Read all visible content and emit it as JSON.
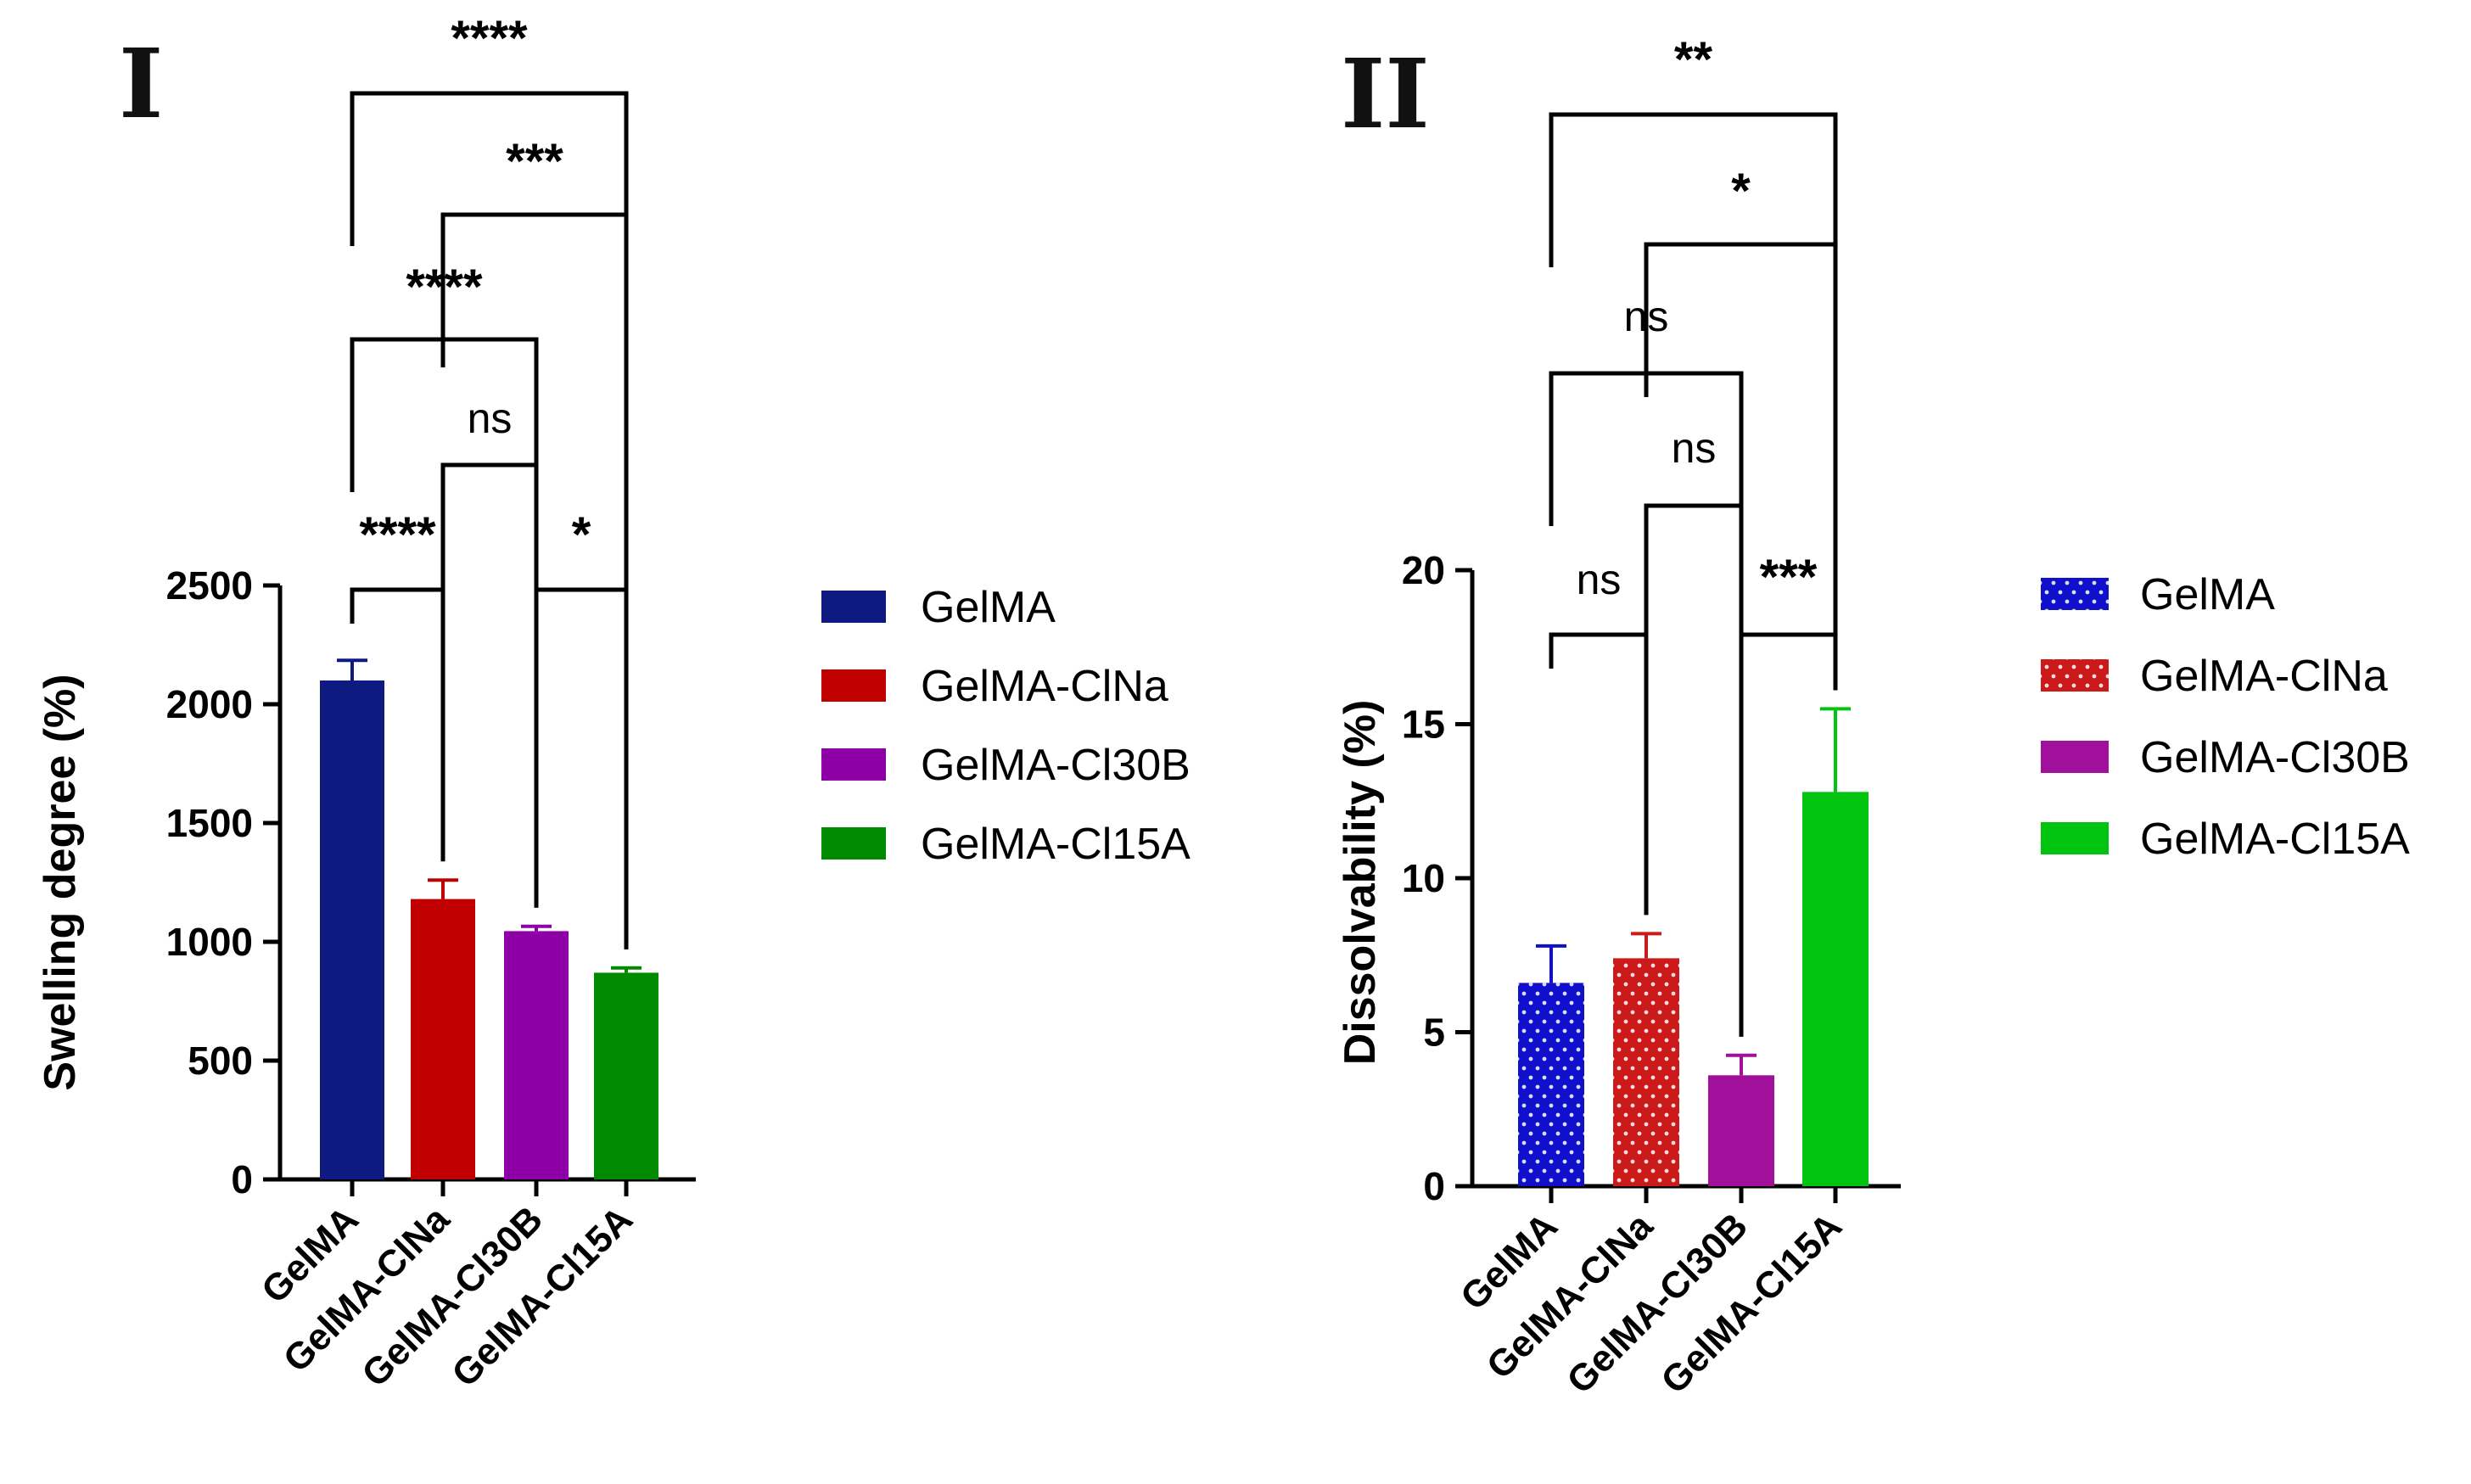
{
  "chart_data": [
    {
      "panel": "I",
      "type": "bar",
      "ylabel": "Swelling degree (%)",
      "ylim": [
        0,
        2500
      ],
      "yticks": [
        0,
        500,
        1000,
        1500,
        2000,
        2500
      ],
      "categories": [
        "GelMA",
        "GelMA-ClNa",
        "GelMA-Cl30B",
        "GelMA-Cl15A"
      ],
      "values": [
        2100,
        1180,
        1045,
        870
      ],
      "errors": [
        85,
        80,
        20,
        20
      ],
      "colors": [
        "#0f1a80",
        "#c00000",
        "#8c00a6",
        "#008a00"
      ],
      "legend": [
        {
          "label": "GelMA",
          "color": "#0f1a80"
        },
        {
          "label": "GelMA-ClNa",
          "color": "#c00000"
        },
        {
          "label": "GelMA-Cl30B",
          "color": "#8c00a6"
        },
        {
          "label": "GelMA-Cl15A",
          "color": "#008a00"
        }
      ],
      "comparisons": [
        {
          "from": 0,
          "to": 1,
          "label": "****"
        },
        {
          "from": 2,
          "to": 3,
          "label": "*"
        },
        {
          "from": 1,
          "to": 2,
          "label": "ns"
        },
        {
          "from": 0,
          "to": 2,
          "label": "****"
        },
        {
          "from": 1,
          "to": 3,
          "label": "***"
        },
        {
          "from": 0,
          "to": 3,
          "label": "****"
        }
      ]
    },
    {
      "panel": "II",
      "type": "bar",
      "ylabel": "Dissolvability (%)",
      "ylim": [
        0,
        20
      ],
      "yticks": [
        0,
        5,
        10,
        15,
        20
      ],
      "categories": [
        "GelMA",
        "GelMA-ClNa",
        "GelMA-Cl30B",
        "GelMA-Cl15A"
      ],
      "values": [
        6.6,
        7.4,
        3.6,
        12.8
      ],
      "errors": [
        1.2,
        0.8,
        0.65,
        2.7
      ],
      "colors": [
        "#1010cc",
        "#cc1a1a",
        "#a0109a",
        "#00c410"
      ],
      "dotted": [
        true,
        true,
        false,
        false
      ],
      "legend": [
        {
          "label": "GelMA",
          "color": "#1010cc"
        },
        {
          "label": "GelMA-ClNa",
          "color": "#cc1a1a"
        },
        {
          "label": "GelMA-Cl30B",
          "color": "#a0109a"
        },
        {
          "label": "GelMA-Cl15A",
          "color": "#00c410"
        }
      ],
      "comparisons": [
        {
          "from": 0,
          "to": 1,
          "label": "ns"
        },
        {
          "from": 2,
          "to": 3,
          "label": "***"
        },
        {
          "from": 1,
          "to": 2,
          "label": "ns"
        },
        {
          "from": 0,
          "to": 2,
          "label": "ns"
        },
        {
          "from": 1,
          "to": 3,
          "label": "*"
        },
        {
          "from": 0,
          "to": 3,
          "label": "**"
        }
      ]
    }
  ]
}
